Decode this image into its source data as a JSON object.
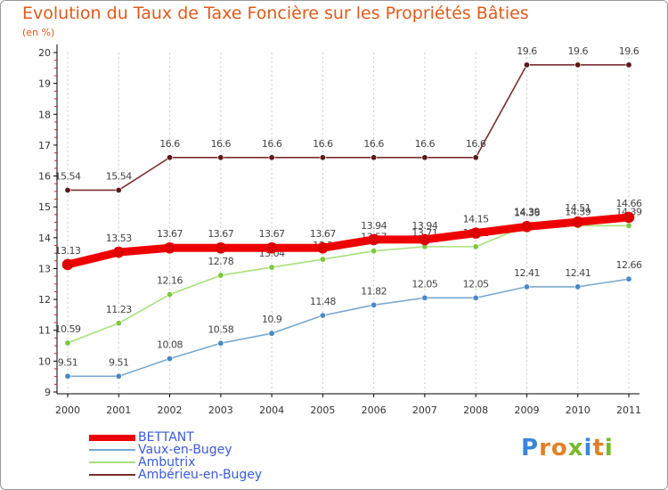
{
  "header": {
    "title": "Evolution du Taux de Taxe Foncière sur les Propriétés Bâties",
    "unit": "(en %)"
  },
  "logo": {
    "text": "Proxiti",
    "letters": [
      {
        "ch": "P",
        "color": "#3a86d8"
      },
      {
        "ch": "r",
        "color": "#e0802a"
      },
      {
        "ch": "o",
        "color": "#e0802a"
      },
      {
        "ch": "x",
        "color": "#7ab82c"
      },
      {
        "ch": "i",
        "color": "#3a86d8"
      },
      {
        "ch": "t",
        "color": "#e0802a"
      },
      {
        "ch": "i",
        "color": "#7ab82c"
      }
    ]
  },
  "chart_data": {
    "type": "line",
    "title": "Evolution du Taux de Taxe Foncière sur les Propriétés Bâties",
    "ylabel": "(en %)",
    "xlabel": "",
    "ylim": [
      9,
      20
    ],
    "yticks": [
      9,
      10,
      11,
      12,
      13,
      14,
      15,
      16,
      17,
      18,
      19,
      20
    ],
    "ytick_labels": [
      "9",
      "10",
      "11",
      "12",
      "13",
      "14",
      "15",
      "16",
      "17",
      "18",
      "19",
      "20"
    ],
    "categories": [
      "2000",
      "2001",
      "2002",
      "2003",
      "2004",
      "2005",
      "2006",
      "2007",
      "2008",
      "2009",
      "2010",
      "2011"
    ],
    "legend_position": "bottom-left",
    "series": [
      {
        "name": "Ambérieu-en-Bugey",
        "color": "#7a2e2e",
        "marker": "#5a1a1a",
        "values": [
          15.54,
          15.54,
          16.6,
          16.6,
          16.6,
          16.6,
          16.6,
          16.6,
          16.6,
          19.6,
          19.6,
          19.6
        ],
        "labels": [
          "15.54",
          "15.54",
          "16.6",
          "16.6",
          "16.6",
          "16.6",
          "16.6",
          "16.6",
          "16.6",
          "19.6",
          "19.6",
          "19.6"
        ]
      },
      {
        "name": "Ambutrix",
        "color": "#a8e07a",
        "marker": "#7ac83c",
        "values": [
          10.59,
          11.23,
          12.16,
          12.78,
          13.04,
          13.3,
          13.57,
          13.71,
          13.71,
          14.39,
          14.39,
          14.39
        ],
        "labels": [
          "10.59",
          "11.23",
          "12.16",
          "12.78",
          "13.04",
          "13.3",
          "13.57",
          "13.71",
          "13.71",
          "14.39",
          "14.39",
          "14.39"
        ]
      },
      {
        "name": "Vaux-en-Bugey",
        "color": "#7aa8d0",
        "marker": "#4a88c8",
        "values": [
          9.51,
          9.51,
          10.08,
          10.58,
          10.9,
          11.48,
          11.82,
          12.05,
          12.05,
          12.41,
          12.41,
          12.66
        ],
        "labels": [
          "9.51",
          "9.51",
          "10.08",
          "10.58",
          "10.9",
          "11.48",
          "11.82",
          "12.05",
          "12.05",
          "12.41",
          "12.41",
          "12.66"
        ]
      },
      {
        "name": "BETTANT",
        "color": "#ee0000",
        "marker": "#dd0000",
        "values": [
          13.13,
          13.53,
          13.67,
          13.67,
          13.67,
          13.67,
          13.94,
          13.94,
          14.15,
          14.36,
          14.51,
          14.66
        ],
        "labels": [
          "13.13",
          "13.53",
          "13.67",
          "13.67",
          "13.67",
          "13.67",
          "13.94",
          "13.94",
          "14.15",
          "14.36",
          "14.51",
          "14.66"
        ]
      }
    ],
    "legend": [
      "BETTANT",
      "Vaux-en-Bugey",
      "Ambutrix",
      "Ambérieu-en-Bugey"
    ]
  }
}
